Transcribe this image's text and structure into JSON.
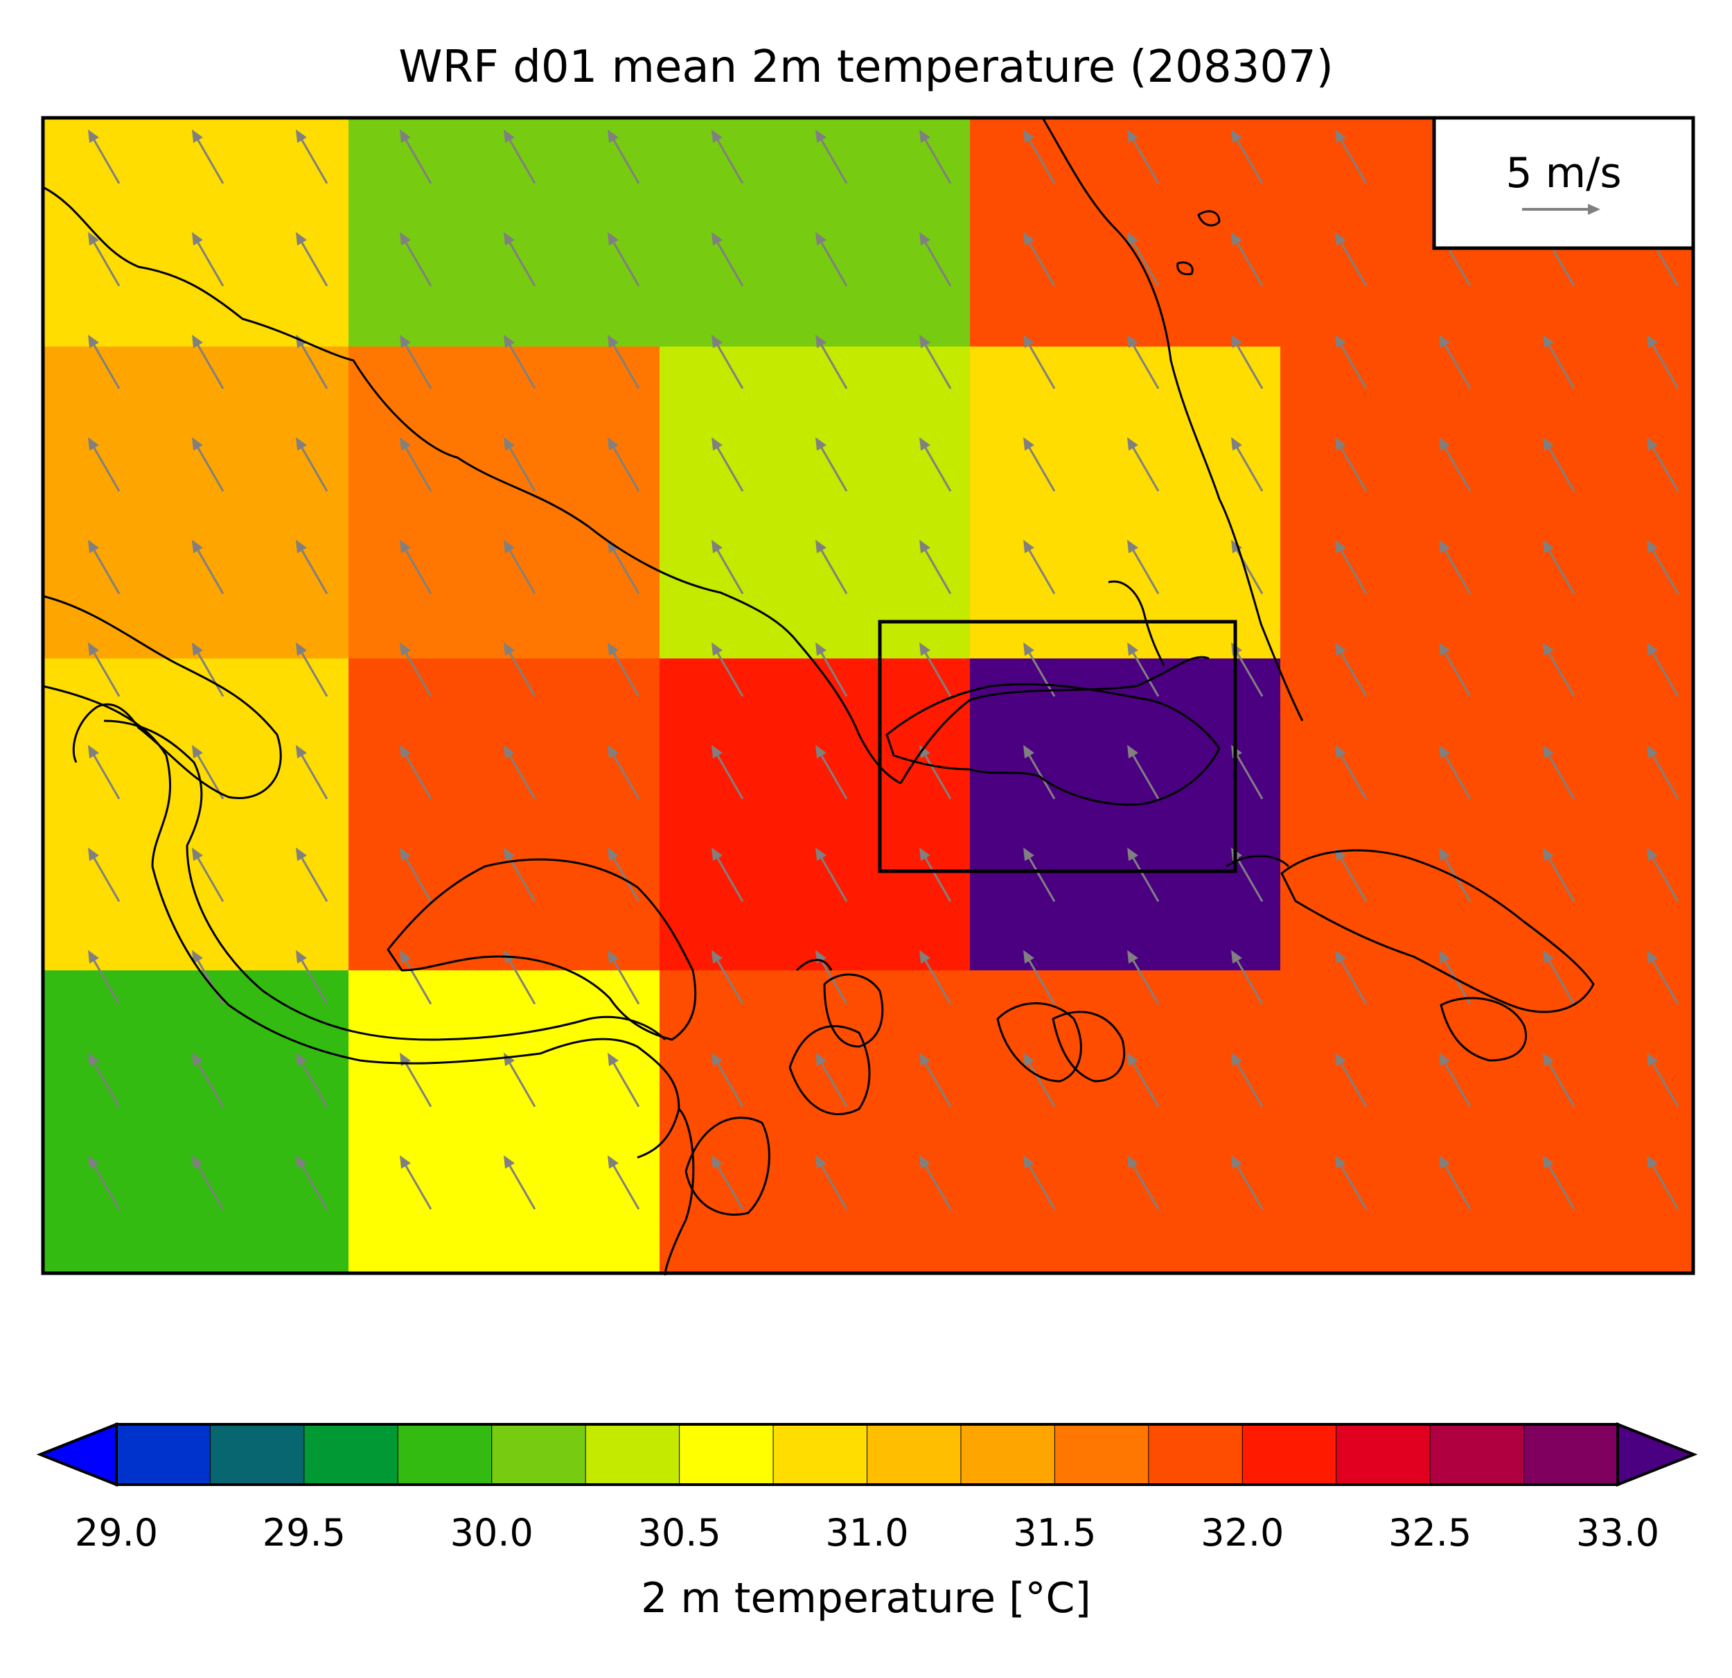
{
  "title": "WRF d01 mean 2m temperature (208307)",
  "map": {
    "variable": "2 m temperature",
    "units": "°C",
    "vector_field": "10 m wind",
    "vector_color": "#808080",
    "wind_direction_deg": 330,
    "grid": [
      [
        30.8,
        30.2,
        30.2,
        31.8,
        31.8,
        31.8
      ],
      [
        31.3,
        31.5,
        30.3,
        30.8,
        31.8,
        31.8
      ],
      [
        30.8,
        31.8,
        32.0,
        33.2,
        31.8,
        31.8
      ],
      [
        29.8,
        30.6,
        31.8,
        31.8,
        31.8,
        31.8
      ]
    ],
    "inner_domain_box": true
  },
  "vector_key": {
    "label": "5 m/s"
  },
  "colorbar": {
    "label": "2 m temperature [°C]",
    "ticks": [
      "29.0",
      "29.5",
      "30.0",
      "30.5",
      "31.0",
      "31.5",
      "32.0",
      "32.5",
      "33.0"
    ],
    "min": 29.0,
    "max": 33.0,
    "step": 0.25,
    "extend": "both",
    "under_color": "#0000ff",
    "over_color": "#4b0082",
    "colors": [
      "#0033cc",
      "#086670",
      "#009933",
      "#33bb11",
      "#77cc11",
      "#c4ea00",
      "#ffff00",
      "#ffdd00",
      "#ffbf00",
      "#ffa500",
      "#ff7700",
      "#ff4d00",
      "#ff1a00",
      "#e20020",
      "#b00040",
      "#800060"
    ]
  }
}
